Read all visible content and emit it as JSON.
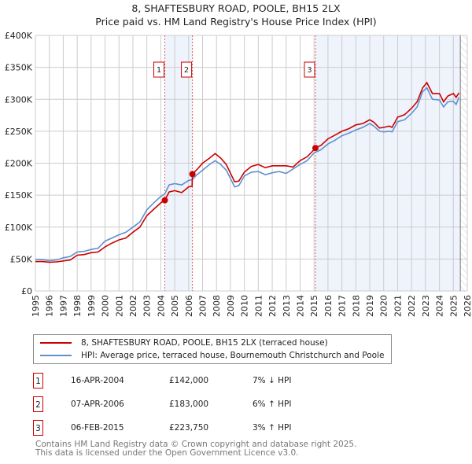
{
  "chart_data": {
    "type": "line",
    "title": "8, SHAFTESBURY ROAD, POOLE, BH15 2LX",
    "subtitle": "Price paid vs. HM Land Registry's House Price Index (HPI)",
    "xlim": [
      1995,
      2026
    ],
    "ylim": [
      0,
      400000
    ],
    "x_ticks": [
      1995,
      1996,
      1997,
      1998,
      1999,
      2000,
      2001,
      2002,
      2003,
      2004,
      2005,
      2006,
      2007,
      2008,
      2009,
      2010,
      2011,
      2012,
      2013,
      2014,
      2015,
      2016,
      2017,
      2018,
      2019,
      2020,
      2021,
      2022,
      2023,
      2024,
      2025,
      2026
    ],
    "y_ticks": [
      {
        "v": 0,
        "label": "£0"
      },
      {
        "v": 50000,
        "label": "£50K"
      },
      {
        "v": 100000,
        "label": "£100K"
      },
      {
        "v": 150000,
        "label": "£150K"
      },
      {
        "v": 200000,
        "label": "£200K"
      },
      {
        "v": 250000,
        "label": "£250K"
      },
      {
        "v": 300000,
        "label": "£300K"
      },
      {
        "v": 350000,
        "label": "£350K"
      },
      {
        "v": 400000,
        "label": "£400K"
      }
    ],
    "grid": true,
    "colors": {
      "property": "#cc0000",
      "hpi": "#6090d0",
      "shade": "#eef3fc",
      "marker_line": "#e06060"
    },
    "shaded_ranges": [
      [
        2004.29,
        2006.27
      ],
      [
        2015.1,
        2025.5
      ]
    ],
    "future_hatch_from": 2025.5,
    "series": [
      {
        "name": "8, SHAFTESBURY ROAD, POOLE, BH15 2LX (terraced house)",
        "key": "property",
        "x": [
          1995,
          1995.5,
          1996,
          1996.5,
          1997,
          1997.5,
          1998,
          1998.5,
          1999,
          1999.5,
          2000,
          2000.5,
          2001,
          2001.5,
          2002,
          2002.5,
          2003,
          2003.5,
          2004,
          2004.29,
          2004.6,
          2005,
          2005.5,
          2006,
          2006.25,
          2006.27,
          2006.6,
          2007,
          2007.5,
          2007.9,
          2008.3,
          2008.7,
          2009.1,
          2009.3,
          2009.6,
          2010,
          2010.5,
          2011,
          2011.5,
          2012,
          2012.5,
          2013,
          2013.5,
          2014,
          2014.5,
          2015,
          2015.1,
          2015.5,
          2016,
          2016.5,
          2017,
          2017.5,
          2018,
          2018.5,
          2019,
          2019.3,
          2019.7,
          2020,
          2020.4,
          2020.6,
          2021,
          2021.5,
          2022,
          2022.4,
          2022.8,
          2023.1,
          2023.5,
          2024,
          2024.3,
          2024.6,
          2025,
          2025.2,
          2025.4
        ],
        "y": [
          46000,
          46000,
          45000,
          45500,
          47000,
          48500,
          56000,
          57000,
          60000,
          61000,
          69000,
          75000,
          80000,
          83000,
          92000,
          100000,
          118000,
          128000,
          138000,
          142000,
          155000,
          157000,
          154000,
          163000,
          164000,
          183000,
          190000,
          200000,
          208000,
          215000,
          208000,
          198000,
          180000,
          171000,
          172000,
          186000,
          195000,
          198000,
          193000,
          196000,
          196000,
          196000,
          194000,
          204000,
          210000,
          221000,
          223750,
          228000,
          238000,
          244000,
          250000,
          254000,
          260000,
          262000,
          268000,
          264000,
          255000,
          256000,
          258000,
          256000,
          272000,
          276000,
          286000,
          296000,
          318000,
          326000,
          309000,
          309000,
          296000,
          305000,
          309000,
          303000,
          310000
        ]
      },
      {
        "name": "HPI: Average price, terraced house, Bournemouth Christchurch and Poole",
        "key": "hpi",
        "x": [
          1995,
          1995.5,
          1996,
          1996.5,
          1997,
          1997.5,
          1998,
          1998.5,
          1999,
          1999.5,
          2000,
          2000.5,
          2001,
          2001.5,
          2002,
          2002.5,
          2003,
          2003.5,
          2004,
          2004.29,
          2004.6,
          2005,
          2005.5,
          2006,
          2006.25,
          2006.6,
          2007,
          2007.5,
          2007.9,
          2008.3,
          2008.7,
          2009.1,
          2009.3,
          2009.6,
          2010,
          2010.5,
          2011,
          2011.5,
          2012,
          2012.5,
          2013,
          2013.5,
          2014,
          2014.5,
          2015,
          2015.5,
          2016,
          2016.5,
          2017,
          2017.5,
          2018,
          2018.5,
          2019,
          2019.3,
          2019.7,
          2020,
          2020.4,
          2020.6,
          2021,
          2021.5,
          2022,
          2022.4,
          2022.8,
          2023.1,
          2023.5,
          2024,
          2024.3,
          2024.6,
          2025,
          2025.2,
          2025.4
        ],
        "y": [
          49500,
          49000,
          47500,
          48500,
          52000,
          54000,
          61000,
          62000,
          65000,
          67000,
          78000,
          83000,
          88000,
          92000,
          100000,
          108000,
          127000,
          138000,
          148000,
          152000,
          166000,
          168000,
          166000,
          173000,
          174000,
          182000,
          189000,
          198000,
          204000,
          198000,
          189000,
          172000,
          163000,
          165000,
          180000,
          186000,
          187000,
          182000,
          185000,
          187000,
          184000,
          191000,
          198000,
          204000,
          216000,
          221000,
          230000,
          236000,
          243000,
          247000,
          252000,
          256000,
          262000,
          258000,
          250000,
          249000,
          250000,
          249000,
          265000,
          268000,
          278000,
          288000,
          312000,
          318000,
          300000,
          299000,
          288000,
          296000,
          297000,
          292000,
          303000
        ]
      }
    ],
    "sales": [
      {
        "n": "1",
        "x": 2004.29,
        "y": 142000
      },
      {
        "n": "2",
        "x": 2006.27,
        "y": 183000
      },
      {
        "n": "3",
        "x": 2015.1,
        "y": 223750
      }
    ]
  },
  "legend": {
    "property": "8, SHAFTESBURY ROAD, POOLE, BH15 2LX (terraced house)",
    "hpi": "HPI: Average price, terraced house, Bournemouth Christchurch and Poole"
  },
  "transactions": [
    {
      "n": "1",
      "date": "16-APR-2004",
      "price": "£142,000",
      "hpi": "7% ↓ HPI"
    },
    {
      "n": "2",
      "date": "07-APR-2006",
      "price": "£183,000",
      "hpi": "6% ↑ HPI"
    },
    {
      "n": "3",
      "date": "06-FEB-2015",
      "price": "£223,750",
      "hpi": "3% ↑ HPI"
    }
  ],
  "footer": {
    "line1": "Contains HM Land Registry data © Crown copyright and database right 2025.",
    "line2": "This data is licensed under the Open Government Licence v3.0."
  }
}
